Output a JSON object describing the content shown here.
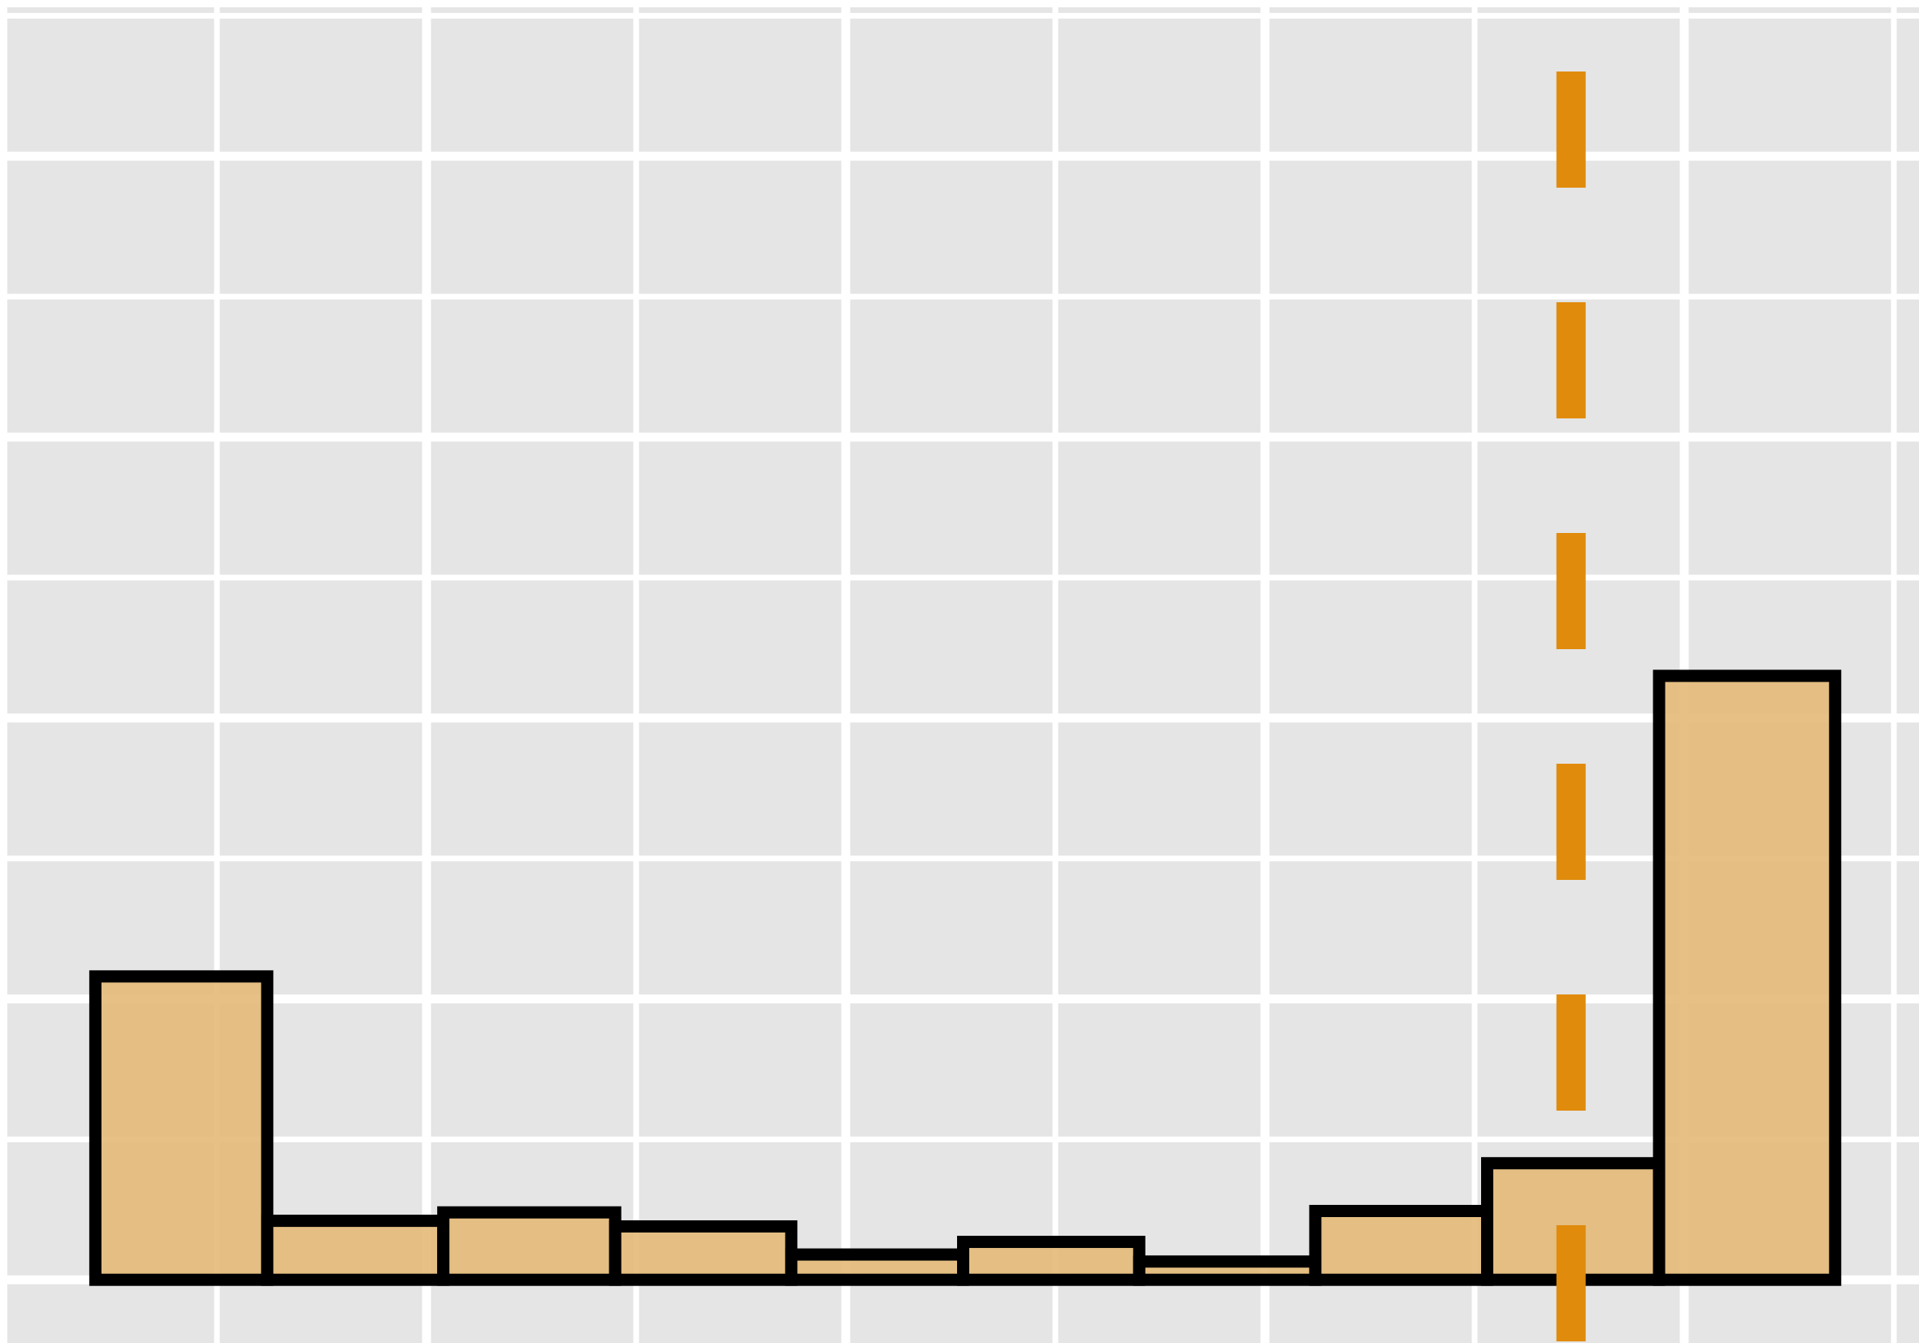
{
  "chart_data": {
    "type": "histogram",
    "bins": [
      0.21,
      0.62,
      1.04,
      1.45,
      1.87,
      2.28,
      2.7,
      3.12,
      3.53,
      3.94,
      4.36
    ],
    "values": [
      2.16,
      0.42,
      0.48,
      0.38,
      0.18,
      0.27,
      0.13,
      0.49,
      0.83,
      4.3
    ],
    "color": "#e3b977",
    "edgecolor": "#000000",
    "vline": 3.73,
    "vline_color": "#e08b0c",
    "xlim": [
      0,
      4.56
    ],
    "xticks": [
      1,
      2,
      3,
      4
    ],
    "xminorticks": [
      0.5,
      1.5,
      2.5,
      3.5,
      4.5
    ],
    "ylim": [
      -0.45,
      9.06
    ],
    "yticks": [
      0,
      2,
      4,
      6,
      8
    ],
    "yminorticks": [
      1,
      3,
      5,
      7,
      9
    ],
    "grid": true,
    "background": "#e5e5e5"
  }
}
